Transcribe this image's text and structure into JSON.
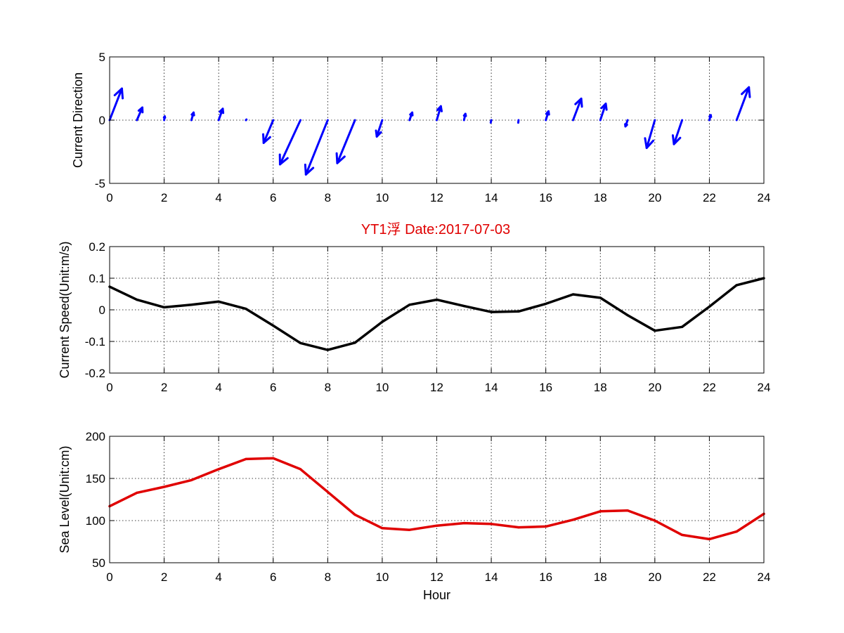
{
  "title": "YT1浮    Date:2017-07-03",
  "title_color": "#e00000",
  "chart_data": [
    {
      "type": "quiver",
      "ylabel": "Current Direction",
      "xlabel": "",
      "xlim": [
        0,
        24
      ],
      "ylim": [
        -5,
        5
      ],
      "xticks": [
        0,
        2,
        4,
        6,
        8,
        10,
        12,
        14,
        16,
        18,
        20,
        22,
        24
      ],
      "yticks": [
        -5,
        0,
        5
      ],
      "grid": true,
      "color": "#0000ff",
      "x": [
        0,
        1,
        2,
        3,
        4,
        5,
        6,
        7,
        8,
        9,
        10,
        11,
        12,
        13,
        14,
        15,
        16,
        17,
        18,
        19,
        20,
        21,
        22,
        23
      ],
      "u": [
        0.45,
        0.2,
        0.02,
        0.08,
        0.15,
        0.02,
        -0.35,
        -0.75,
        -0.8,
        -0.65,
        -0.2,
        0.1,
        0.15,
        0.05,
        -0.02,
        -0.01,
        0.1,
        0.3,
        0.2,
        -0.08,
        -0.3,
        -0.3,
        0.05,
        0.45
      ],
      "v": [
        2.5,
        1.0,
        0.3,
        0.6,
        0.9,
        0.05,
        -1.8,
        -3.5,
        -4.3,
        -3.4,
        -1.3,
        0.6,
        1.1,
        0.5,
        -0.2,
        -0.2,
        0.7,
        1.7,
        1.3,
        -0.5,
        -2.2,
        -1.9,
        0.4,
        2.6
      ]
    },
    {
      "type": "line",
      "ylabel": "Current Speed(Unit:m/s)",
      "xlabel": "",
      "xlim": [
        0,
        24
      ],
      "ylim": [
        -0.2,
        0.2
      ],
      "xticks": [
        0,
        2,
        4,
        6,
        8,
        10,
        12,
        14,
        16,
        18,
        20,
        22,
        24
      ],
      "yticks": [
        -0.2,
        -0.1,
        0,
        0.1,
        0.2
      ],
      "grid": true,
      "color": "#000000",
      "x": [
        0,
        1,
        2,
        3,
        4,
        5,
        6,
        7,
        8,
        9,
        10,
        11,
        12,
        13,
        14,
        15,
        16,
        17,
        18,
        19,
        20,
        21,
        22,
        23,
        24
      ],
      "y": [
        0.073,
        0.032,
        0.008,
        0.016,
        0.026,
        0.003,
        -0.05,
        -0.105,
        -0.127,
        -0.104,
        -0.038,
        0.016,
        0.032,
        0.012,
        -0.007,
        -0.005,
        0.019,
        0.049,
        0.038,
        -0.017,
        -0.066,
        -0.054,
        0.01,
        0.078,
        0.1
      ]
    },
    {
      "type": "line",
      "ylabel": "Sea Level(Unit:cm)",
      "xlabel": "Hour",
      "xlim": [
        0,
        24
      ],
      "ylim": [
        50,
        200
      ],
      "xticks": [
        0,
        2,
        4,
        6,
        8,
        10,
        12,
        14,
        16,
        18,
        20,
        22,
        24
      ],
      "yticks": [
        50,
        100,
        150,
        200
      ],
      "grid": true,
      "color": "#e00000",
      "x": [
        0,
        1,
        2,
        3,
        4,
        5,
        6,
        7,
        8,
        9,
        10,
        11,
        12,
        13,
        14,
        15,
        16,
        17,
        18,
        19,
        20,
        21,
        22,
        23,
        24
      ],
      "y": [
        117,
        133,
        140,
        148,
        161,
        173,
        174,
        161,
        134,
        107,
        91,
        89,
        94,
        97,
        96,
        92,
        93,
        101,
        111,
        112,
        100,
        83,
        78,
        87,
        108
      ]
    }
  ]
}
